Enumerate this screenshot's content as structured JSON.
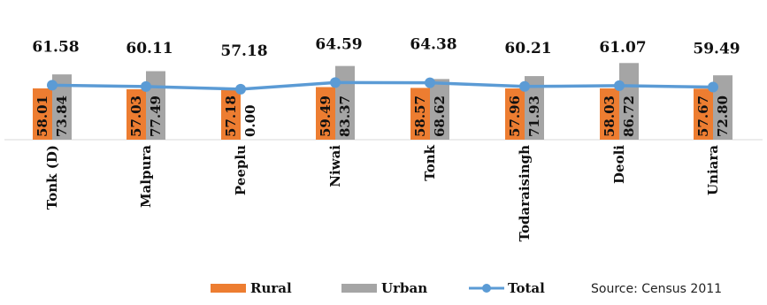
{
  "chart_data": {
    "type": "bar",
    "categories": [
      "Tonk (D)",
      "Malpura",
      "Peeplu",
      "Niwai",
      "Tonk",
      "Todaraisingh",
      "Deoli",
      "Uniara"
    ],
    "series": [
      {
        "name": "Rural",
        "type": "bar",
        "color": "#ED7D31",
        "values": [
          58.01,
          57.03,
          57.18,
          59.49,
          58.57,
          57.96,
          58.03,
          57.67
        ]
      },
      {
        "name": "Urban",
        "type": "bar",
        "color": "#A5A5A5",
        "values": [
          73.84,
          77.49,
          0.0,
          83.37,
          68.62,
          71.93,
          86.72,
          72.8
        ]
      },
      {
        "name": "Total",
        "type": "line",
        "color": "#5B9BD5",
        "values": [
          61.58,
          60.11,
          57.18,
          64.59,
          64.38,
          60.21,
          61.07,
          59.49
        ]
      }
    ],
    "value_labels": {
      "rural": [
        "58.01",
        "57.03",
        "57.18",
        "59.49",
        "58.57",
        "57.96",
        "58.03",
        "57.67"
      ],
      "urban": [
        "73.84",
        "77.49",
        "0.00",
        "83.37",
        "68.62",
        "71.93",
        "86.72",
        "72.80"
      ],
      "total": [
        "61.58",
        "60.11",
        "57.18",
        "64.59",
        "64.38",
        "60.21",
        "61.07",
        "59.49"
      ]
    },
    "legend": {
      "placement": "bottom",
      "items": [
        "Rural",
        "Urban",
        "Total"
      ]
    },
    "ylim": [
      0,
      100
    ],
    "grid": false,
    "source": "Source: Census 2011"
  }
}
